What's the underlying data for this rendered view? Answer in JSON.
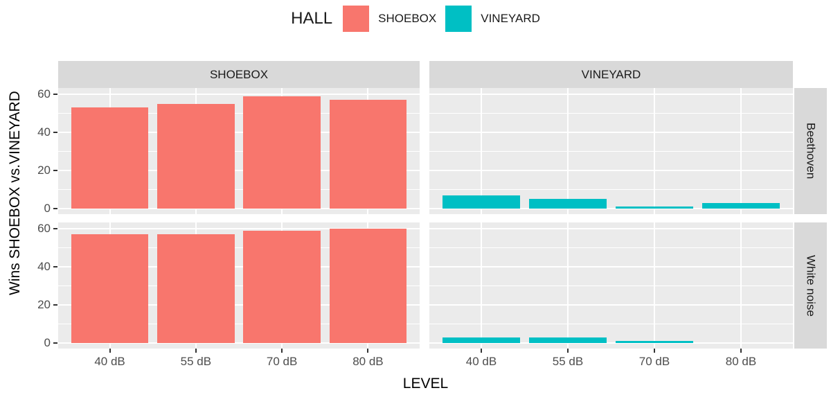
{
  "legend": {
    "title": "HALL",
    "items": [
      {
        "label": "SHOEBOX",
        "color": "#F8766D"
      },
      {
        "label": "VINEYARD",
        "color": "#00BFC4"
      }
    ]
  },
  "facets": {
    "columns": [
      "SHOEBOX",
      "VINEYARD"
    ],
    "rows": [
      "Beethoven",
      "White noise"
    ]
  },
  "axes": {
    "x_title": "LEVEL",
    "y_title": "Wins SHOEBOX vs.VINEYARD",
    "x_tick_labels": [
      "40 dB",
      "55 dB",
      "70 dB",
      "80 dB"
    ],
    "y_tick_labels": [
      "0",
      "20",
      "40",
      "60"
    ]
  },
  "chart_data": {
    "type": "bar",
    "title": "",
    "xlabel": "LEVEL",
    "ylabel": "Wins SHOEBOX vs.VINEYARD",
    "categories": [
      "40 dB",
      "55 dB",
      "70 dB",
      "80 dB"
    ],
    "y_ticks": [
      0,
      20,
      40,
      60
    ],
    "ylim": [
      0,
      63
    ],
    "grid": true,
    "legend_position": "top",
    "facet_grid": {
      "rows": [
        "Beethoven",
        "White noise"
      ],
      "cols": [
        "SHOEBOX",
        "VINEYARD"
      ]
    },
    "panels": [
      {
        "row": "Beethoven",
        "col": "SHOEBOX",
        "series": "SHOEBOX",
        "color": "#F8766D",
        "values": [
          53,
          55,
          59,
          57
        ]
      },
      {
        "row": "Beethoven",
        "col": "VINEYARD",
        "series": "VINEYARD",
        "color": "#00BFC4",
        "values": [
          7,
          5,
          1,
          3
        ]
      },
      {
        "row": "White noise",
        "col": "SHOEBOX",
        "series": "SHOEBOX",
        "color": "#F8766D",
        "values": [
          57,
          57,
          59,
          60
        ]
      },
      {
        "row": "White noise",
        "col": "VINEYARD",
        "series": "VINEYARD",
        "color": "#00BFC4",
        "values": [
          3,
          3,
          1,
          0
        ]
      }
    ]
  },
  "colors": {
    "shoebox": "#F8766D",
    "vineyard": "#00BFC4",
    "panel_bg": "#EBEBEB",
    "strip_bg": "#D9D9D9",
    "gridline": "#FFFFFF",
    "tick_label": "#4D4D4D",
    "tick_mark": "#333333",
    "axis_title": "#000000"
  }
}
